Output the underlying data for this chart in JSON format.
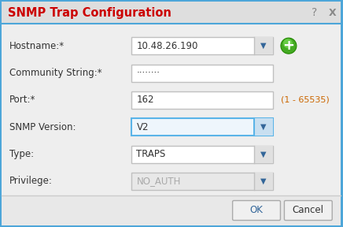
{
  "title": "SNMP Trap Configuration",
  "title_color": "#cc0000",
  "bg_color": "#eeeeee",
  "dialog_border_color": "#4da6d9",
  "title_bar_bg": "#e0e0e0",
  "content_bg": "#eeeeee",
  "footer_bg": "#e8e8e8",
  "fields": [
    {
      "label": "Hostname:*",
      "value": "10.48.26.190",
      "type": "dropdown",
      "row": 0
    },
    {
      "label": "Community String:*",
      "value": "········",
      "type": "text",
      "row": 1
    },
    {
      "label": "Port:*",
      "value": "162",
      "type": "text",
      "row": 2,
      "note": "(1 - 65535)"
    },
    {
      "label": "SNMP Version:",
      "value": "V2",
      "type": "dropdown_blue",
      "row": 3
    },
    {
      "label": "Type:",
      "value": "TRAPS",
      "type": "dropdown",
      "row": 4
    },
    {
      "label": "Privilege:",
      "value": "NO_AUTH",
      "type": "dropdown_gray",
      "row": 5
    }
  ],
  "ok_label": "OK",
  "cancel_label": "Cancel",
  "question_mark": "?",
  "close_x": "X",
  "white": "#ffffff",
  "blue_border": "#5ab4e8",
  "blue_border2": "#3399cc",
  "gray_text": "#aaaaaa",
  "dark_text": "#333333",
  "arrow_color": "#336699",
  "green_btn_color": "#44aa22",
  "green_btn_highlight": "#66cc44",
  "note_color": "#cc6600",
  "ok_color": "#336699"
}
